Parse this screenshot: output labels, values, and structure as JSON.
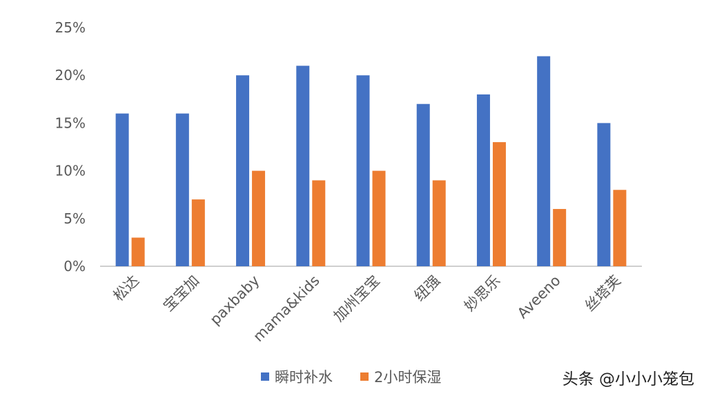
{
  "chart_data": {
    "type": "bar",
    "categories": [
      "松达",
      "宝宝加",
      "paxbaby",
      "mama&kids",
      "加州宝宝",
      "纽强",
      "妙思乐",
      "Aveeno",
      "丝塔芙"
    ],
    "series": [
      {
        "name": "瞬时补水",
        "color": "#4472C4",
        "values": [
          16,
          16,
          20,
          21,
          20,
          17,
          18,
          22,
          15
        ]
      },
      {
        "name": "2小时保湿",
        "color": "#ED7D31",
        "values": [
          3,
          7,
          10,
          9,
          10,
          9,
          13,
          6,
          8
        ]
      }
    ],
    "ylim": [
      0,
      25
    ],
    "yticks": [
      "0%",
      "5%",
      "10%",
      "15%",
      "20%",
      "25%"
    ],
    "grid": false,
    "legend_position": "bottom"
  },
  "watermark": "头条 @小小小笼包"
}
